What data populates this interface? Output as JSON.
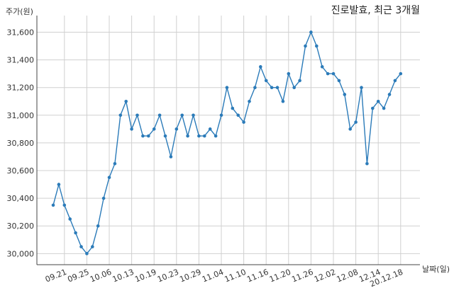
{
  "chart_data": {
    "type": "line",
    "title": "진로발효, 최근 3개월",
    "ylabel": "주가(원)",
    "xlabel": "날짜(일)",
    "ylim": [
      29920,
      31720
    ],
    "yticks": [
      30000,
      30200,
      30400,
      30600,
      30800,
      31000,
      31200,
      31400,
      31600
    ],
    "ytick_labels": [
      "30,000",
      "30,200",
      "30,400",
      "30,600",
      "30,800",
      "31,000",
      "31,200",
      "31,400",
      "31,600"
    ],
    "xtick_labels": [
      "09.21",
      "09.25",
      "10.06",
      "10.13",
      "10.19",
      "10.23",
      "10.29",
      "11.04",
      "11.10",
      "11.16",
      "11.20",
      "11.26",
      "12.02",
      "12.08",
      "12.14",
      "20.12.18"
    ],
    "xtick_positions": [
      2,
      6,
      10,
      14,
      18,
      22,
      26,
      30,
      34,
      38,
      42,
      46,
      50,
      54,
      58,
      62
    ],
    "grid": true,
    "color": "#2b7bb9",
    "series": [
      {
        "name": "",
        "values": [
          30350,
          30500,
          30350,
          30250,
          30150,
          30050,
          30000,
          30050,
          30200,
          30400,
          30550,
          30650,
          31000,
          31100,
          30900,
          31000,
          30850,
          30850,
          30900,
          31000,
          30850,
          30700,
          30900,
          31000,
          30850,
          31000,
          30850,
          30850,
          30900,
          30850,
          31000,
          31200,
          31050,
          31000,
          30950,
          31100,
          31200,
          31350,
          31250,
          31200,
          31200,
          31100,
          31300,
          31200,
          31250,
          31500,
          31600,
          31500,
          31350,
          31300,
          31300,
          31250,
          31150,
          30900,
          30950,
          31200,
          30650,
          31050,
          31100,
          31050,
          31150,
          31250,
          31300
        ]
      }
    ]
  }
}
